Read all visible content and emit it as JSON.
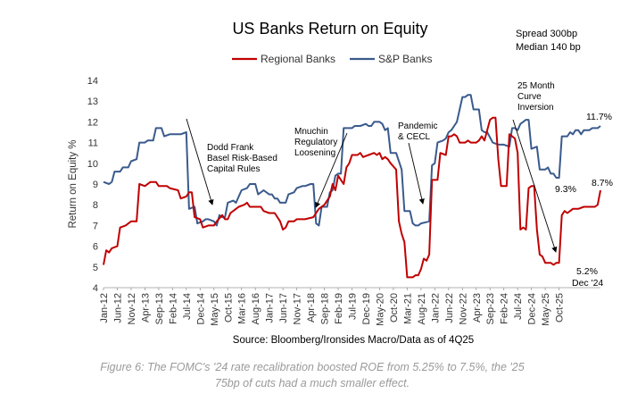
{
  "chart_data": {
    "type": "line",
    "title": "US Banks Return on Equity",
    "ylabel": "Return on Equity %",
    "xlabel": "",
    "ylim": [
      4,
      14
    ],
    "yticks": [
      4,
      5,
      6,
      7,
      8,
      9,
      10,
      11,
      12,
      13,
      14
    ],
    "x_start": "2012-01",
    "x_end": "2025-12",
    "x_tick_labels": [
      "Jan-12",
      "Jun-12",
      "Nov-12",
      "Apr-13",
      "Sep-13",
      "Feb-14",
      "Jul-14",
      "Dec-14",
      "May-15",
      "Oct-15",
      "Mar-16",
      "Aug-16",
      "Jan-17",
      "Jun-17",
      "Nov-17",
      "Apr-18",
      "Sep-18",
      "Feb-19",
      "Jul-19",
      "Dec-19",
      "May-20",
      "Oct-20",
      "Mar-21",
      "Aug-21",
      "Jan-22",
      "Jun-22",
      "Nov-22",
      "Apr-23",
      "Sep-23",
      "Feb-24",
      "Jul-24",
      "Dec-24",
      "May-25",
      "Oct-25"
    ],
    "series": [
      {
        "name": "Regional Banks",
        "color": "#c00000",
        "points": [
          [
            0,
            5.1
          ],
          [
            1,
            5.8
          ],
          [
            2,
            5.7
          ],
          [
            3,
            5.9
          ],
          [
            5,
            6.0
          ],
          [
            6,
            6.9
          ],
          [
            8,
            7.0
          ],
          [
            10,
            7.2
          ],
          [
            12,
            7.2
          ],
          [
            13,
            9.0
          ],
          [
            15,
            8.9
          ],
          [
            17,
            9.1
          ],
          [
            19,
            9.1
          ],
          [
            20,
            8.9
          ],
          [
            23,
            8.9
          ],
          [
            24,
            8.8
          ],
          [
            27,
            8.7
          ],
          [
            28,
            8.3
          ],
          [
            30,
            8.4
          ],
          [
            31,
            8.6
          ],
          [
            32,
            8.6
          ],
          [
            33,
            7.4
          ],
          [
            35,
            7.3
          ],
          [
            36,
            6.9
          ],
          [
            38,
            7.0
          ],
          [
            40,
            7.0
          ],
          [
            41,
            7.2
          ],
          [
            43,
            7.5
          ],
          [
            44,
            7.3
          ],
          [
            45,
            7.3
          ],
          [
            46,
            7.6
          ],
          [
            48,
            7.8
          ],
          [
            49,
            7.9
          ],
          [
            51,
            8.0
          ],
          [
            52,
            8.1
          ],
          [
            53,
            7.9
          ],
          [
            55,
            7.9
          ],
          [
            57,
            7.9
          ],
          [
            58,
            7.7
          ],
          [
            60,
            7.6
          ],
          [
            62,
            7.6
          ],
          [
            64,
            7.2
          ],
          [
            65,
            6.8
          ],
          [
            66,
            6.9
          ],
          [
            67,
            7.2
          ],
          [
            69,
            7.2
          ],
          [
            70,
            7.3
          ],
          [
            73,
            7.3
          ],
          [
            76,
            7.4
          ],
          [
            77,
            7.6
          ],
          [
            78,
            7.8
          ],
          [
            80,
            8.0
          ],
          [
            82,
            8.4
          ],
          [
            83,
            9.0
          ],
          [
            84,
            8.7
          ],
          [
            85,
            9.4
          ],
          [
            86,
            9.2
          ],
          [
            87,
            9.0
          ],
          [
            88,
            9.8
          ],
          [
            89,
            10.0
          ],
          [
            90,
            10.4
          ],
          [
            92,
            10.4
          ],
          [
            93,
            10.5
          ],
          [
            94,
            10.3
          ],
          [
            96,
            10.4
          ],
          [
            98,
            10.5
          ],
          [
            99,
            10.4
          ],
          [
            100,
            10.5
          ],
          [
            101,
            10.2
          ],
          [
            102,
            10.3
          ],
          [
            103,
            10.2
          ],
          [
            104,
            10.0
          ],
          [
            106,
            9.7
          ],
          [
            107,
            7.2
          ],
          [
            108,
            6.6
          ],
          [
            109,
            6.2
          ],
          [
            110,
            4.5
          ],
          [
            112,
            4.5
          ],
          [
            113,
            4.6
          ],
          [
            114,
            4.6
          ],
          [
            115,
            4.9
          ],
          [
            116,
            5.4
          ],
          [
            117,
            5.3
          ],
          [
            118,
            5.6
          ],
          [
            119,
            9.2
          ],
          [
            121,
            9.2
          ],
          [
            122,
            10.5
          ],
          [
            124,
            10.4
          ],
          [
            125,
            11.3
          ],
          [
            126,
            11.3
          ],
          [
            127,
            11.4
          ],
          [
            128,
            11.3
          ],
          [
            129,
            11.0
          ],
          [
            130,
            11.0
          ],
          [
            131,
            11.0
          ],
          [
            132,
            11.1
          ],
          [
            133,
            11.0
          ],
          [
            135,
            11.0
          ],
          [
            136,
            11.1
          ],
          [
            137,
            11.3
          ],
          [
            138,
            11.1
          ],
          [
            140,
            12.1
          ],
          [
            141,
            12.2
          ],
          [
            142,
            12.2
          ],
          [
            143,
            10.2
          ],
          [
            144,
            8.9
          ],
          [
            145,
            8.9
          ],
          [
            146,
            8.9
          ],
          [
            147,
            11.4
          ],
          [
            148,
            11.3
          ],
          [
            149,
            11.2
          ],
          [
            150,
            10.5
          ],
          [
            151,
            6.8
          ],
          [
            152,
            6.9
          ],
          [
            153,
            6.8
          ],
          [
            154,
            8.8
          ],
          [
            155,
            8.9
          ],
          [
            156,
            8.9
          ],
          [
            157,
            6.8
          ],
          [
            158,
            5.6
          ],
          [
            159,
            5.5
          ],
          [
            160,
            5.2
          ],
          [
            162,
            5.2
          ],
          [
            163,
            5.1
          ],
          [
            164,
            5.2
          ],
          [
            165,
            5.2
          ],
          [
            166,
            7.5
          ],
          [
            167,
            7.7
          ],
          [
            168,
            7.6
          ],
          [
            170,
            7.8
          ],
          [
            172,
            7.8
          ],
          [
            174,
            7.9
          ],
          [
            176,
            7.9
          ],
          [
            178,
            7.9
          ],
          [
            179,
            8.0
          ],
          [
            180,
            8.7
          ]
        ]
      },
      {
        "name": "S&P Banks",
        "color": "#3a5a8c",
        "points": [
          [
            0,
            9.1
          ],
          [
            2,
            9.0
          ],
          [
            3,
            9.1
          ],
          [
            4,
            9.6
          ],
          [
            6,
            9.6
          ],
          [
            7,
            9.8
          ],
          [
            9,
            9.8
          ],
          [
            10,
            10.1
          ],
          [
            12,
            10.2
          ],
          [
            13,
            11.0
          ],
          [
            15,
            11.0
          ],
          [
            16,
            11.1
          ],
          [
            18,
            11.1
          ],
          [
            19,
            11.7
          ],
          [
            21,
            11.7
          ],
          [
            22,
            11.3
          ],
          [
            24,
            11.4
          ],
          [
            26,
            11.4
          ],
          [
            28,
            11.4
          ],
          [
            30,
            11.5
          ],
          [
            31,
            7.8
          ],
          [
            33,
            7.9
          ],
          [
            34,
            7.1
          ],
          [
            36,
            7.2
          ],
          [
            37,
            7.3
          ],
          [
            38,
            7.3
          ],
          [
            40,
            7.2
          ],
          [
            41,
            7.0
          ],
          [
            42,
            7.5
          ],
          [
            43,
            7.4
          ],
          [
            44,
            7.4
          ],
          [
            45,
            8.1
          ],
          [
            47,
            8.2
          ],
          [
            48,
            8.1
          ],
          [
            50,
            8.7
          ],
          [
            52,
            8.8
          ],
          [
            53,
            9.0
          ],
          [
            55,
            9.0
          ],
          [
            56,
            8.5
          ],
          [
            58,
            8.7
          ],
          [
            60,
            8.5
          ],
          [
            61,
            8.5
          ],
          [
            62,
            8.3
          ],
          [
            63,
            8.3
          ],
          [
            64,
            8.1
          ],
          [
            66,
            8.1
          ],
          [
            67,
            8.5
          ],
          [
            69,
            8.6
          ],
          [
            70,
            8.8
          ],
          [
            72,
            8.9
          ],
          [
            73,
            8.9
          ],
          [
            75,
            9.0
          ],
          [
            76,
            9.0
          ],
          [
            77,
            7.1
          ],
          [
            78,
            7.0
          ],
          [
            79,
            7.9
          ],
          [
            81,
            7.9
          ],
          [
            82,
            8.6
          ],
          [
            83,
            8.7
          ],
          [
            84,
            9.4
          ],
          [
            85,
            9.5
          ],
          [
            86,
            9.5
          ],
          [
            87,
            11.7
          ],
          [
            89,
            11.7
          ],
          [
            90,
            11.7
          ],
          [
            91,
            11.8
          ],
          [
            93,
            11.8
          ],
          [
            95,
            11.9
          ],
          [
            96,
            11.8
          ],
          [
            97,
            11.8
          ],
          [
            98,
            12.0
          ],
          [
            100,
            12.0
          ],
          [
            101,
            11.9
          ],
          [
            102,
            11.6
          ],
          [
            103,
            11.7
          ],
          [
            104,
            10.5
          ],
          [
            106,
            10.5
          ],
          [
            107,
            10.1
          ],
          [
            108,
            9.7
          ],
          [
            109,
            7.7
          ],
          [
            111,
            7.7
          ],
          [
            112,
            7.1
          ],
          [
            113,
            7.0
          ],
          [
            114,
            7.0
          ],
          [
            115,
            7.1
          ],
          [
            118,
            7.2
          ],
          [
            119,
            9.9
          ],
          [
            120,
            10.0
          ],
          [
            121,
            11.0
          ],
          [
            123,
            11.1
          ],
          [
            124,
            11.2
          ],
          [
            125,
            11.5
          ],
          [
            126,
            11.6
          ],
          [
            127,
            11.8
          ],
          [
            128,
            12.0
          ],
          [
            129,
            12.6
          ],
          [
            130,
            13.2
          ],
          [
            131,
            13.2
          ],
          [
            132,
            13.3
          ],
          [
            133,
            13.3
          ],
          [
            134,
            12.6
          ],
          [
            136,
            12.6
          ],
          [
            137,
            11.6
          ],
          [
            138,
            11.5
          ],
          [
            139,
            11.5
          ],
          [
            141,
            11.0
          ],
          [
            143,
            10.9
          ],
          [
            145,
            10.9
          ],
          [
            147,
            10.8
          ],
          [
            148,
            11.7
          ],
          [
            149,
            11.7
          ],
          [
            150,
            11.6
          ],
          [
            151,
            11.9
          ],
          [
            152,
            12.0
          ],
          [
            153,
            12.1
          ],
          [
            154,
            12.1
          ],
          [
            155,
            10.7
          ],
          [
            157,
            10.8
          ],
          [
            158,
            9.7
          ],
          [
            160,
            9.7
          ],
          [
            161,
            9.8
          ],
          [
            162,
            9.5
          ],
          [
            163,
            9.5
          ],
          [
            164,
            9.3
          ],
          [
            165,
            9.3
          ],
          [
            166,
            11.3
          ],
          [
            168,
            11.3
          ],
          [
            169,
            11.5
          ],
          [
            170,
            11.4
          ],
          [
            171,
            11.6
          ],
          [
            172,
            11.6
          ],
          [
            173,
            11.4
          ],
          [
            174,
            11.6
          ],
          [
            176,
            11.6
          ],
          [
            177,
            11.7
          ],
          [
            179,
            11.7
          ],
          [
            180,
            11.8
          ]
        ]
      }
    ],
    "annotations": [
      {
        "lines": [
          "Spread 300bp",
          "Median 140 bp"
        ]
      },
      {
        "lines": [
          "Dodd Frank",
          "Basel Risk-Based",
          "Capital Rules"
        ]
      },
      {
        "lines": [
          "Mnuchin",
          "Regulatory",
          "Loosening"
        ]
      },
      {
        "lines": [
          "Pandemic",
          "& CECL"
        ]
      },
      {
        "lines": [
          "25 Month",
          "Curve",
          "Inversion"
        ]
      },
      {
        "lines": [
          "11.7%"
        ]
      },
      {
        "lines": [
          "9.3%"
        ]
      },
      {
        "lines": [
          "8.7%"
        ]
      },
      {
        "lines": [
          "5.2%",
          "Dec '24"
        ]
      }
    ],
    "source": "Source: Bloomberg/Ironsides Macro/Data as of 4Q25"
  },
  "caption": {
    "line1": "Figure 6: The FOMC's '24 rate recalibration boosted ROE from 5.25% to 7.5%, the '25",
    "line2": "75bp of cuts had a much smaller effect."
  }
}
